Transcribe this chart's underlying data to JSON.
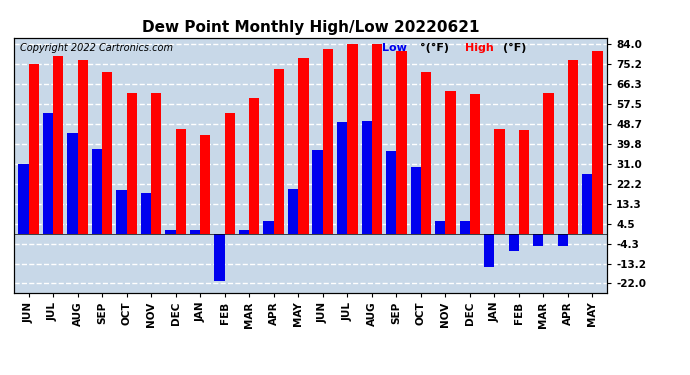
{
  "title": "Dew Point Monthly High/Low 20220621",
  "copyright": "Copyright 2022 Cartronics.com",
  "months": [
    "JUN",
    "JUL",
    "AUG",
    "SEP",
    "OCT",
    "NOV",
    "DEC",
    "JAN",
    "FEB",
    "MAR",
    "APR",
    "MAY",
    "JUN",
    "JUL",
    "AUG",
    "SEP",
    "OCT",
    "NOV",
    "DEC",
    "JAN",
    "FEB",
    "MAR",
    "APR",
    "MAY"
  ],
  "high_values": [
    75.2,
    79.0,
    77.0,
    71.5,
    62.5,
    62.5,
    46.5,
    44.0,
    53.5,
    60.0,
    73.0,
    78.0,
    82.0,
    84.0,
    84.0,
    81.0,
    71.5,
    63.5,
    62.0,
    46.5,
    46.0,
    62.5,
    77.0,
    81.0
  ],
  "low_values": [
    31.0,
    53.5,
    44.5,
    37.5,
    19.5,
    18.0,
    1.5,
    1.5,
    -21.0,
    1.5,
    5.5,
    20.0,
    37.0,
    49.5,
    50.0,
    36.5,
    29.5,
    5.5,
    5.5,
    -14.5,
    -7.5,
    -5.5,
    -5.5,
    26.5
  ],
  "yticks": [
    84.0,
    75.2,
    66.3,
    57.5,
    48.7,
    39.8,
    31.0,
    22.2,
    13.3,
    4.5,
    -4.3,
    -13.2,
    -22.0
  ],
  "ylim_min": -26,
  "ylim_max": 87,
  "bar_width": 0.42,
  "high_color": "#FF0000",
  "low_color": "#0000EE",
  "bg_color": "#C8D8E8",
  "plot_bg": "#C8D8E8",
  "fig_bg": "#FFFFFF",
  "grid_color": "#FFFFFF",
  "title_fontsize": 11,
  "copyright_fontsize": 7,
  "legend_fontsize": 8,
  "tick_fontsize": 7.5
}
